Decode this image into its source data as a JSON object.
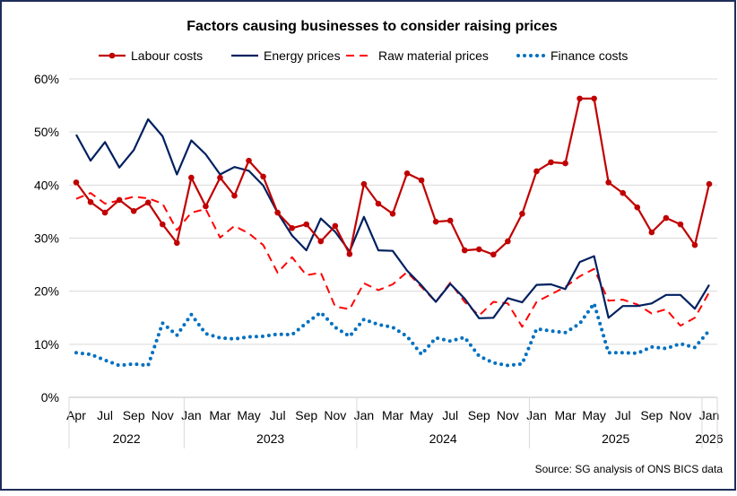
{
  "chart_data": {
    "type": "line",
    "title": "Factors causing businesses to consider raising prices",
    "source": "Source: SG analysis of ONS BICS data",
    "xlabel": "",
    "ylabel": "",
    "ylim": [
      0,
      60
    ],
    "yticks": [
      "0%",
      "10%",
      "20%",
      "30%",
      "40%",
      "50%",
      "60%"
    ],
    "grid": true,
    "legend": "top",
    "x_tick_labels": [
      {
        "index": 0,
        "label": "Apr"
      },
      {
        "index": 2,
        "label": "Jul"
      },
      {
        "index": 4,
        "label": "Sep"
      },
      {
        "index": 6,
        "label": "Nov"
      },
      {
        "index": 8,
        "label": "Jan"
      },
      {
        "index": 10,
        "label": "Mar"
      },
      {
        "index": 12,
        "label": "May"
      },
      {
        "index": 14,
        "label": "Jul"
      },
      {
        "index": 16,
        "label": "Sep"
      },
      {
        "index": 18,
        "label": "Nov"
      },
      {
        "index": 20,
        "label": "Jan"
      },
      {
        "index": 22,
        "label": "Mar"
      },
      {
        "index": 24,
        "label": "May"
      },
      {
        "index": 26,
        "label": "Jul"
      },
      {
        "index": 28,
        "label": "Sep"
      },
      {
        "index": 30,
        "label": "Nov"
      },
      {
        "index": 32,
        "label": "Jan"
      },
      {
        "index": 34,
        "label": "Mar"
      },
      {
        "index": 36,
        "label": "May"
      },
      {
        "index": 38,
        "label": "Jul"
      },
      {
        "index": 40,
        "label": "Sep"
      },
      {
        "index": 42,
        "label": "Nov"
      },
      {
        "index": 44,
        "label": "Jan"
      }
    ],
    "years": [
      {
        "label": "2022",
        "from": 0,
        "to": 7
      },
      {
        "label": "2023",
        "from": 8,
        "to": 19
      },
      {
        "label": "2024",
        "from": 20,
        "to": 31
      },
      {
        "label": "2025",
        "from": 32,
        "to": 43
      },
      {
        "label": "2026",
        "from": 44,
        "to": 44
      }
    ],
    "series": [
      {
        "name": "Labour costs",
        "color": "#c00000",
        "style": "solid-markers",
        "values": [
          40.5,
          36.8,
          34.8,
          37.2,
          35.1,
          36.7,
          32.6,
          29.1,
          41.4,
          36.0,
          41.4,
          38.0,
          44.6,
          41.6,
          34.8,
          31.9,
          32.6,
          29.4,
          32.3,
          27.0,
          40.2,
          36.5,
          34.6,
          42.2,
          40.9,
          33.1,
          33.3,
          27.7,
          27.9,
          26.9,
          29.4,
          34.6,
          42.6,
          44.3,
          44.1,
          56.3,
          56.3,
          40.5,
          38.5,
          35.8,
          31.1,
          33.8,
          32.6,
          28.7,
          40.2
        ]
      },
      {
        "name": "Energy prices",
        "color": "#002060",
        "style": "solid",
        "values": [
          49.5,
          44.6,
          48.1,
          43.3,
          46.6,
          52.4,
          49.2,
          42.0,
          48.4,
          45.8,
          42.0,
          43.4,
          42.7,
          39.9,
          34.8,
          30.5,
          27.7,
          33.7,
          31.2,
          27.5,
          34.0,
          27.7,
          27.6,
          23.9,
          21.1,
          18.0,
          21.4,
          18.6,
          14.9,
          15.0,
          18.7,
          17.9,
          21.2,
          21.3,
          20.4,
          25.5,
          26.6,
          15.0,
          17.2,
          17.2,
          17.7,
          19.3,
          19.3,
          16.7,
          21.2
        ]
      },
      {
        "name": "Raw material prices",
        "color": "#ff0000",
        "style": "dashed",
        "values": [
          37.4,
          38.5,
          36.5,
          37.1,
          37.8,
          37.5,
          36.5,
          31.5,
          34.8,
          35.5,
          30.1,
          32.3,
          30.9,
          28.7,
          23.5,
          26.4,
          23.0,
          23.5,
          17.1,
          16.6,
          21.5,
          20.2,
          21.3,
          23.6,
          20.8,
          18.0,
          21.6,
          18.0,
          15.4,
          18.0,
          17.7,
          13.3,
          18.0,
          19.4,
          20.8,
          22.8,
          24.2,
          18.2,
          18.4,
          17.5,
          15.8,
          16.6,
          13.5,
          15.0,
          19.8
        ]
      },
      {
        "name": "Finance costs",
        "color": "#0070c0",
        "style": "dotted",
        "values": [
          8.4,
          8.1,
          7.0,
          6.0,
          6.3,
          6.0,
          14.0,
          11.7,
          15.6,
          12.0,
          11.2,
          11.0,
          11.4,
          11.5,
          11.9,
          11.8,
          14.0,
          16.0,
          13.2,
          11.5,
          14.7,
          13.7,
          13.2,
          11.5,
          8.1,
          11.2,
          10.6,
          11.3,
          7.8,
          6.5,
          6.0,
          6.3,
          12.9,
          12.5,
          12.2,
          13.9,
          17.7,
          8.4,
          8.4,
          8.3,
          9.5,
          9.2,
          10.1,
          9.4,
          12.6
        ]
      }
    ]
  }
}
